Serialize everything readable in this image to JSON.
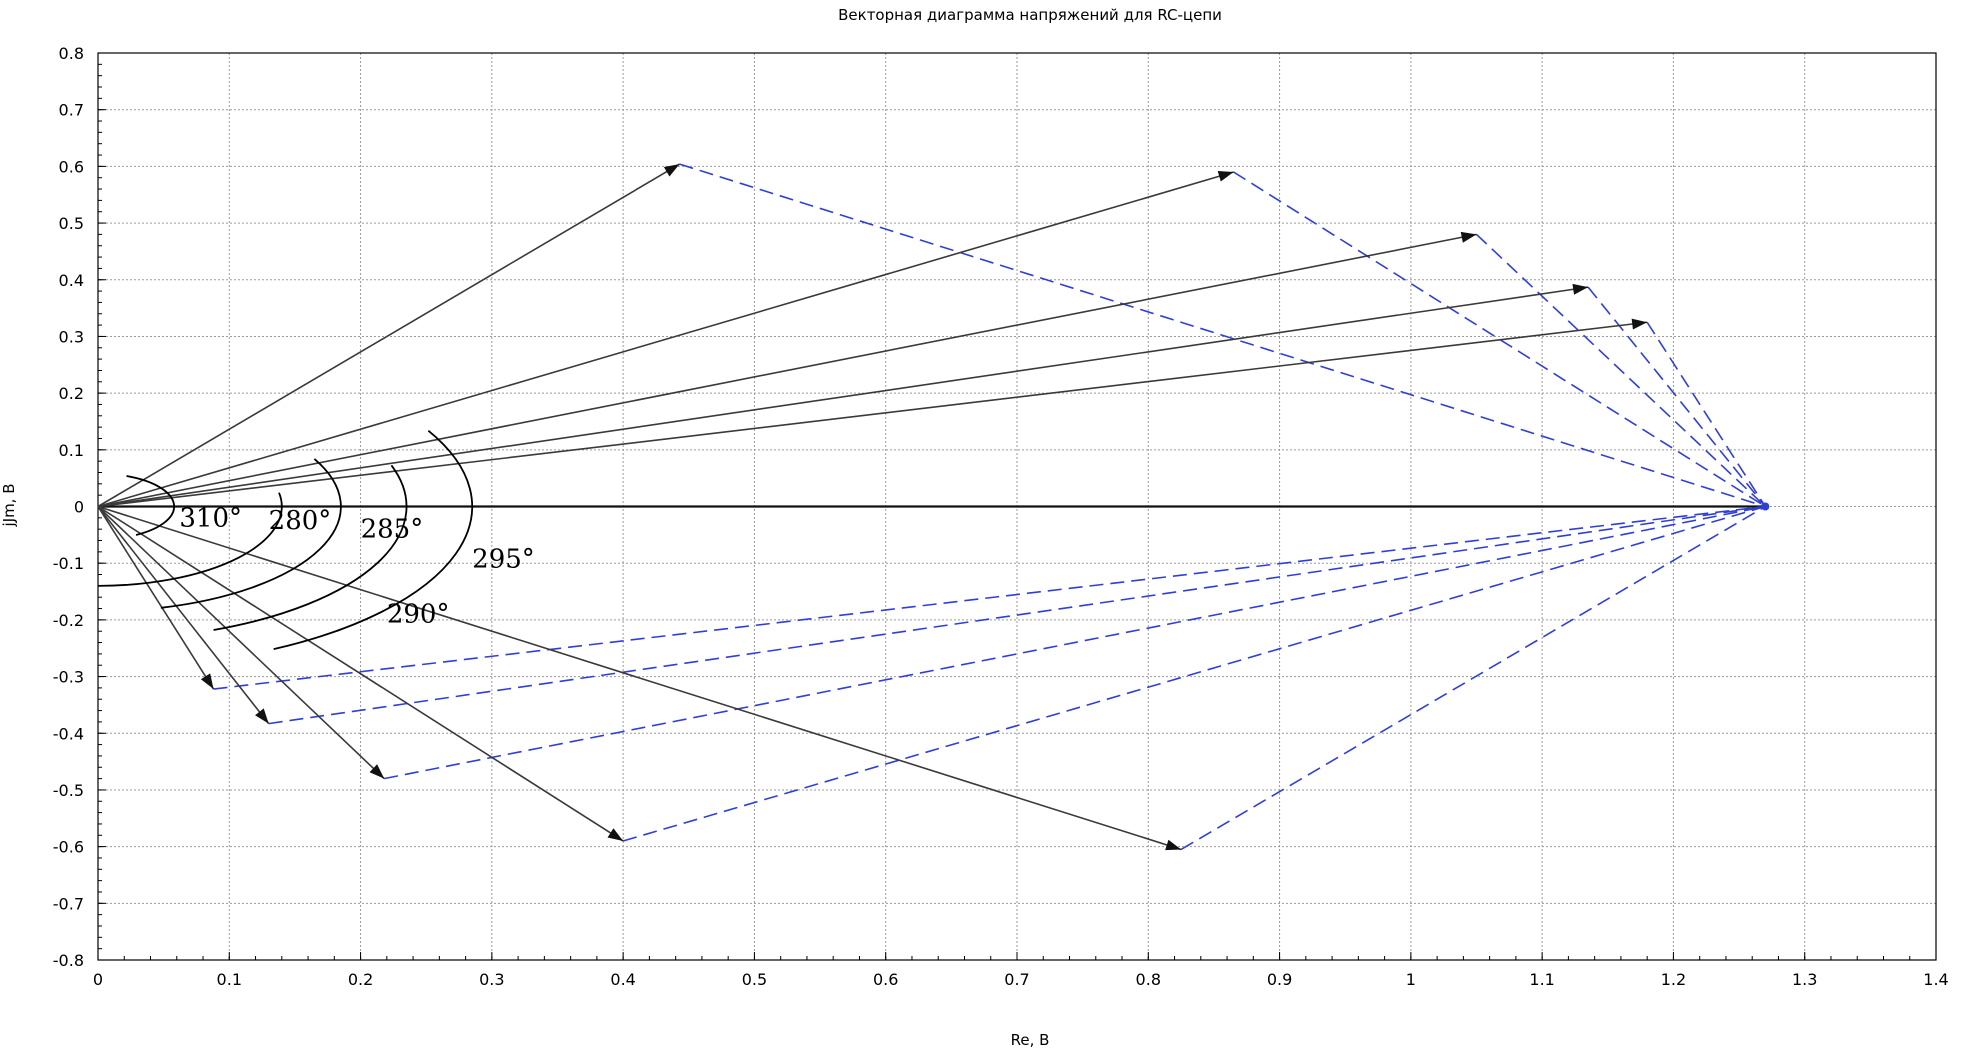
{
  "chart_data": {
    "type": "line",
    "title": "Векторная диаграмма напряжений для RC-цепи",
    "xlabel": "Re, В",
    "ylabel": "jJm, В",
    "xlim": [
      0,
      1.4
    ],
    "ylim": [
      -0.8,
      0.8
    ],
    "x_ticks": [
      "0",
      "0.1",
      "0.2",
      "0.3",
      "0.4",
      "0.5",
      "0.6",
      "0.7",
      "0.8",
      "0.9",
      "1",
      "1.1",
      "1.2",
      "1.3",
      "1.4"
    ],
    "y_ticks": [
      "0.8",
      "0.7",
      "0.6",
      "0.5",
      "0.4",
      "0.3",
      "0.2",
      "0.1",
      "0",
      "-0.1",
      "-0.2",
      "-0.3",
      "-0.4",
      "-0.5",
      "-0.6",
      "-0.7",
      "-0.8"
    ],
    "grid": true,
    "reference_vector": {
      "from": [
        0,
        0
      ],
      "to": [
        1.27,
        0
      ]
    },
    "vectors": [
      {
        "tip": [
          0.443,
          0.604
        ],
        "color": "#3a3a3a"
      },
      {
        "tip": [
          0.865,
          0.59
        ],
        "color": "#3a3a3a"
      },
      {
        "tip": [
          1.05,
          0.48
        ],
        "color": "#3a3a3a"
      },
      {
        "tip": [
          1.135,
          0.387
        ],
        "color": "#3a3a3a"
      },
      {
        "tip": [
          1.18,
          0.325
        ],
        "color": "#3a3a3a"
      },
      {
        "tip": [
          0.088,
          -0.322
        ],
        "color": "#3a3a3a"
      },
      {
        "tip": [
          0.13,
          -0.383
        ],
        "color": "#3a3a3a"
      },
      {
        "tip": [
          0.218,
          -0.48
        ],
        "color": "#3a3a3a"
      },
      {
        "tip": [
          0.4,
          -0.59
        ],
        "color": "#3a3a3a"
      },
      {
        "tip": [
          0.825,
          -0.605
        ],
        "color": "#3a3a3a"
      }
    ],
    "dashed_color": "#2f3fd6",
    "arcs": [
      {
        "label": "310°",
        "r": 0.058,
        "from_deg": 68,
        "to_deg": -60,
        "label_pos": [
          0.062,
          -0.035
        ]
      },
      {
        "label": "280°",
        "r": 0.14,
        "from_deg": 10,
        "to_deg": -90,
        "label_pos": [
          0.13,
          -0.04
        ]
      },
      {
        "label": "285°",
        "r": 0.185,
        "from_deg": 27,
        "to_deg": -75,
        "label_pos": [
          0.2,
          -0.055
        ]
      },
      {
        "label": "290°",
        "r": 0.235,
        "from_deg": 18,
        "to_deg": -68,
        "label_pos": [
          0.22,
          -0.205
        ]
      },
      {
        "label": "295°",
        "r": 0.285,
        "from_deg": 28,
        "to_deg": -62,
        "label_pos": [
          0.285,
          -0.108
        ]
      }
    ]
  }
}
